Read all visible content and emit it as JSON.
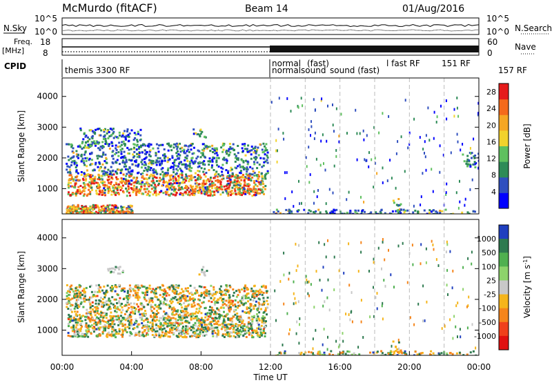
{
  "header": {
    "title": "McMurdo (fitACF)",
    "beam": "Beam 14",
    "date": "01/Aug/2016"
  },
  "aux_panels": {
    "nsky_label": "N.Sky",
    "nsearch_label": "N.Search",
    "freq_label": "Freq.",
    "freq_unit": "[MHz]",
    "nave_label": "Nave",
    "cpid_label": "CPID",
    "noise_ticks": [
      "10^5",
      "10^0"
    ],
    "freq_ticks": [
      "18",
      "8"
    ],
    "nave_ticks": [
      "60",
      "0"
    ]
  },
  "cpid_labels": [
    "themis 3300 RF",
    "normal",
    "normalsound",
    "(fast)",
    "sound (fast)",
    "l fast RF",
    "151 RF",
    "157 RF"
  ],
  "time_axis": {
    "label": "Time UT",
    "ticks": [
      "00:00",
      "04:00",
      "08:00",
      "12:00",
      "16:00",
      "20:00",
      "00:00"
    ]
  },
  "chart_data": [
    {
      "type": "heatmap",
      "panel": "power",
      "ylabel": "Slant Range [km]",
      "yticks": [
        1000,
        2000,
        3000,
        4000
      ],
      "ylim": [
        180,
        4600
      ],
      "xlim_hours": [
        0,
        24
      ],
      "colorbar": {
        "label": "Power [dB]",
        "ticks": [
          4,
          8,
          12,
          16,
          20,
          24,
          28
        ],
        "range": [
          0,
          30
        ],
        "colors": [
          "#0000ff",
          "#2f4fbf",
          "#2e8b57",
          "#5fc05f",
          "#f2d22c",
          "#f5a623",
          "#f46a1b",
          "#e51b1b"
        ]
      },
      "regions": [
        {
          "t": [
            0.3,
            11.7
          ],
          "range_km": [
            800,
            1500
          ],
          "level": "high"
        },
        {
          "t": [
            0.2,
            11.8
          ],
          "range_km": [
            1500,
            2500
          ],
          "level": "low"
        },
        {
          "t": [
            1.0,
            4.5
          ],
          "range_km": [
            2500,
            3000
          ],
          "level": "low"
        },
        {
          "t": [
            7.5,
            8.3
          ],
          "range_km": [
            2700,
            3000
          ],
          "level": "low"
        },
        {
          "t": [
            0.2,
            4.0
          ],
          "range_km": [
            180,
            500
          ],
          "level": "high"
        },
        {
          "t": [
            12.0,
            24.0
          ],
          "range_km": [
            180,
            350
          ],
          "level": "low"
        },
        {
          "t": [
            19.0,
            19.5
          ],
          "range_km": [
            300,
            700
          ],
          "level": "medium"
        },
        {
          "t": [
            23.0,
            24.0
          ],
          "range_km": [
            1700,
            2200
          ],
          "level": "low"
        }
      ]
    },
    {
      "type": "heatmap",
      "panel": "velocity",
      "ylabel": "Slant Range [km]",
      "yticks": [
        1000,
        2000,
        3000,
        4000
      ],
      "ylim": [
        180,
        4600
      ],
      "xlim_hours": [
        0,
        24
      ],
      "colorbar": {
        "label": "Velocity [m s-1]",
        "ticks": [
          1000,
          500,
          100,
          25,
          -25,
          -100,
          -500,
          -1000
        ],
        "colors": [
          "#1f3fbf",
          "#2e7a4f",
          "#4fb04f",
          "#8dd36b",
          "#c8c8c8",
          "#f5b51b",
          "#f5851b",
          "#f0401b",
          "#e01010"
        ]
      },
      "regions": [
        {
          "t": [
            0.3,
            11.7
          ],
          "range_km": [
            800,
            1500
          ],
          "velocity": "mixed"
        },
        {
          "t": [
            0.2,
            11.8
          ],
          "range_km": [
            1500,
            2500
          ],
          "velocity": "orange/green"
        },
        {
          "t": [
            2.5,
            3.5
          ],
          "range_km": [
            2800,
            3100
          ],
          "velocity": "grey"
        },
        {
          "t": [
            7.8,
            8.3
          ],
          "range_km": [
            2800,
            3100
          ],
          "velocity": "grey"
        },
        {
          "t": [
            12.0,
            24.0
          ],
          "range_km": [
            180,
            350
          ],
          "velocity": "green/orange"
        },
        {
          "t": [
            19.0,
            19.5
          ],
          "range_km": [
            300,
            700
          ],
          "velocity": "orange"
        }
      ]
    }
  ]
}
